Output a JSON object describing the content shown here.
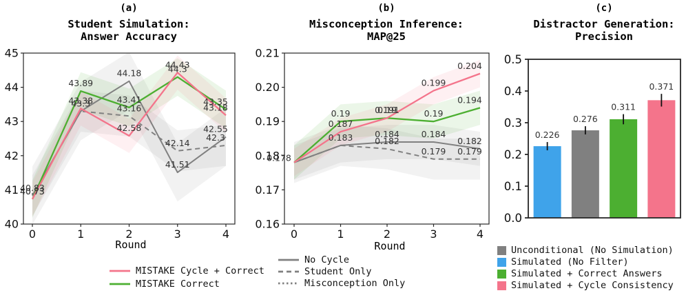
{
  "panels": {
    "a": {
      "letter": "(a)",
      "title1": "Student Simulation:",
      "title2": "Answer Accuracy",
      "xlabel": "Round"
    },
    "b": {
      "letter": "(b)",
      "title1": "Misconception Inference:",
      "title2": "MAP@25",
      "xlabel": "Round"
    },
    "c": {
      "letter": "(c)",
      "title1": "Distractor Generation:",
      "title2": "Precision"
    }
  },
  "colors": {
    "pink": "#F4748B",
    "green": "#4CAF31",
    "blue": "#3FA3EA",
    "gray": "#808080",
    "axis": "#262626",
    "annotation_text": "#333333",
    "tick_text": "#111111"
  },
  "chart_data": [
    {
      "id": "a",
      "type": "line",
      "title": "Student Simulation: Answer Accuracy",
      "xlabel": "Round",
      "x": [
        0,
        1,
        2,
        3,
        4
      ],
      "x_tick_labels": [
        "0",
        "1",
        "2",
        "3",
        "4"
      ],
      "ylim": [
        40,
        45
      ],
      "yticks": [
        40,
        41,
        42,
        43,
        44,
        45
      ],
      "ytick_labels": [
        "40",
        "41",
        "42",
        "43",
        "44",
        "45"
      ],
      "series": [
        {
          "name": "No Cycle",
          "color_key": "gray",
          "dash": "solid",
          "values": [
            40.83,
            43.3,
            44.18,
            41.51,
            42.55
          ],
          "labels": [
            "40.83",
            "43.3",
            "44.18",
            "41.51",
            "42.55"
          ],
          "band": 0.85
        },
        {
          "name": "Student Only",
          "color_key": "gray",
          "dash": "dashed",
          "values": [
            40.83,
            43.3,
            43.16,
            42.14,
            42.3
          ],
          "labels": [
            "",
            "",
            "43.16",
            "42.14",
            "42.3"
          ],
          "band": 0.6
        },
        {
          "name": "MISTAKE Correct",
          "color_key": "green",
          "dash": "solid",
          "values": [
            40.73,
            43.89,
            43.41,
            44.3,
            43.35
          ],
          "labels": [
            "40.73",
            "43.89",
            "43.41",
            "44.3",
            "43.35"
          ],
          "band": 0.55
        },
        {
          "name": "MISTAKE Cycle + Correct",
          "color_key": "pink",
          "dash": "solid",
          "values": [
            40.73,
            43.38,
            42.58,
            44.43,
            43.18
          ],
          "labels": [
            "40.73",
            "43.38",
            "42.58",
            "44.43",
            "43.18"
          ],
          "band": 0.5
        }
      ]
    },
    {
      "id": "b",
      "type": "line",
      "title": "Misconception Inference: MAP@25",
      "xlabel": "Round",
      "x": [
        0,
        1,
        2,
        3,
        4
      ],
      "x_tick_labels": [
        "0",
        "1",
        "2",
        "3",
        "4"
      ],
      "ylim": [
        0.16,
        0.21
      ],
      "yticks": [
        0.16,
        0.17,
        0.18,
        0.19,
        0.2,
        0.21
      ],
      "ytick_labels": [
        "0.16",
        "0.17",
        "0.18",
        "0.19",
        "0.20",
        "0.21"
      ],
      "series": [
        {
          "name": "No Cycle",
          "color_key": "gray",
          "dash": "solid",
          "values": [
            0.178,
            0.183,
            0.184,
            0.184,
            0.182
          ],
          "labels": [
            "",
            "0.183",
            "0.184",
            "0.184",
            "0.182"
          ],
          "band": 0.005
        },
        {
          "name": "Student Only",
          "color_key": "gray",
          "dash": "dashed",
          "values": [
            0.178,
            0.183,
            0.182,
            0.179,
            0.179
          ],
          "labels": [
            "",
            "",
            "0.182",
            "0.179",
            "0.179"
          ],
          "band": 0.006
        },
        {
          "name": "MISTAKE Correct",
          "color_key": "green",
          "dash": "solid",
          "values": [
            0.178,
            0.19,
            0.191,
            0.19,
            0.194
          ],
          "labels": [
            "",
            "0.19",
            "0.19",
            "0.19",
            "0.194"
          ],
          "band": 0.005
        },
        {
          "name": "MISTAKE Cycle + Correct",
          "color_key": "pink",
          "dash": "solid",
          "values": [
            0.178,
            0.187,
            0.191,
            0.199,
            0.204
          ],
          "labels": [
            "0.178",
            "0.187",
            "0.191",
            "0.199",
            "0.204"
          ],
          "band": 0.004
        }
      ]
    },
    {
      "id": "c",
      "type": "bar",
      "title": "Distractor Generation: Precision",
      "categories": [
        "Simulated (No Filter)",
        "Unconditional (No Simulation)",
        "Simulated + Correct Answers",
        "Simulated + Cycle Consistency"
      ],
      "values": [
        0.226,
        0.276,
        0.311,
        0.371
      ],
      "errors": [
        0.013,
        0.013,
        0.016,
        0.02
      ],
      "bar_labels": [
        "0.226",
        "0.276",
        "0.311",
        "0.371"
      ],
      "bar_color_keys": [
        "blue",
        "gray",
        "green",
        "pink"
      ],
      "ylim": [
        0,
        0.5
      ],
      "yticks": [
        0,
        0.1,
        0.2,
        0.3,
        0.4,
        0.5
      ],
      "ytick_labels": [
        "0.0",
        "0.1",
        "0.2",
        "0.3",
        "0.4",
        "0.5"
      ]
    }
  ],
  "legends": {
    "mistake": [
      {
        "label": "MISTAKE Cycle + Correct",
        "color_key": "pink",
        "dash": "solid"
      },
      {
        "label": "MISTAKE Correct",
        "color_key": "green",
        "dash": "solid"
      }
    ],
    "cycle": [
      {
        "label": "No Cycle",
        "color_key": "gray",
        "dash": "solid"
      },
      {
        "label": "Student Only",
        "color_key": "gray",
        "dash": "dashed"
      },
      {
        "label": "Misconception Only",
        "color_key": "gray",
        "dash": "dotted"
      }
    ],
    "bars": [
      {
        "label": "Unconditional (No Simulation)",
        "color_key": "gray"
      },
      {
        "label": "Simulated (No Filter)",
        "color_key": "blue"
      },
      {
        "label": "Simulated + Correct Answers",
        "color_key": "green"
      },
      {
        "label": "Simulated + Cycle Consistency",
        "color_key": "pink"
      }
    ]
  }
}
